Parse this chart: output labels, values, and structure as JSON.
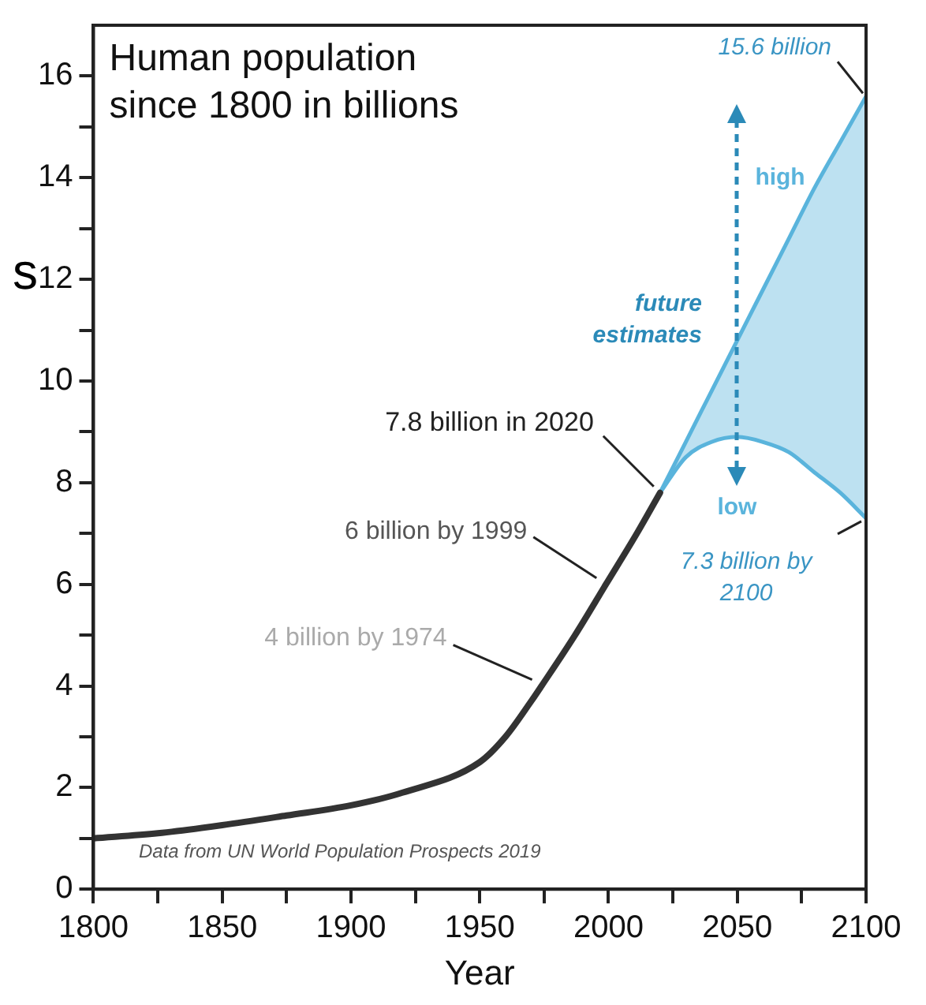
{
  "chart_data": {
    "type": "line",
    "title": "Human population since 1800 in billions",
    "xlabel": "Year",
    "xlim": [
      1800,
      2100
    ],
    "xticks": [
      1800,
      {
        "value": 1825,
        "label": null
      },
      1850,
      {
        "value": 1875,
        "label": null
      },
      1900,
      {
        "value": 1925,
        "label": null
      },
      1950,
      {
        "value": 1975,
        "label": null
      },
      2000,
      {
        "value": 2025,
        "label": null
      },
      2050,
      {
        "value": 2075,
        "label": null
      },
      2100
    ],
    "ylim": [
      0,
      17
    ],
    "yticks": [
      0,
      {
        "value": 1,
        "label": null
      },
      2,
      {
        "value": 3,
        "label": null
      },
      4,
      {
        "value": 5,
        "label": null
      },
      6,
      {
        "value": 7,
        "label": null
      },
      8,
      {
        "value": 9,
        "label": null
      },
      10,
      {
        "value": 11,
        "label": null
      },
      12,
      {
        "value": 13,
        "label": null
      },
      14,
      {
        "value": 15,
        "label": null
      },
      16
    ],
    "grid": false,
    "legend": false,
    "marker": "none",
    "line_style": "solid",
    "series": [
      {
        "color": "#333333",
        "x": [
          1800,
          1825,
          1850,
          1875,
          1900,
          1920,
          1950,
          1960,
          1970,
          1974,
          1987,
          1999,
          2011,
          2020
        ],
        "values": [
          1.0,
          1.1,
          1.26,
          1.45,
          1.65,
          1.9,
          2.5,
          3.0,
          3.7,
          4.0,
          5.0,
          6.0,
          7.0,
          7.8
        ]
      },
      {
        "name": "high",
        "color": "#5ab4dc",
        "x": [
          2020,
          2030,
          2040,
          2050,
          2060,
          2070,
          2080,
          2090,
          2100
        ],
        "values": [
          7.8,
          8.8,
          9.8,
          10.8,
          11.8,
          12.8,
          13.8,
          14.7,
          15.6
        ],
        "lower": [
          7.8,
          8.5,
          8.8,
          8.9,
          8.8,
          8.6,
          8.2,
          7.8,
          7.3
        ],
        "upper": [
          7.8,
          8.8,
          9.8,
          10.8,
          11.8,
          12.8,
          13.8,
          14.7,
          15.6
        ]
      },
      {
        "name": "low",
        "color": "#5ab4dc",
        "x": [
          2020,
          2030,
          2040,
          2050,
          2060,
          2070,
          2080,
          2090,
          2100
        ],
        "values": [
          7.8,
          8.5,
          8.8,
          8.9,
          8.8,
          8.6,
          8.2,
          7.8,
          7.3
        ]
      }
    ],
    "annotations": [
      {
        "text": "7.8 billion in 2020",
        "x": 2020,
        "y": 7.8
      },
      {
        "text": "6 billion by 1999",
        "x": 1999,
        "y": 6
      },
      {
        "text": "4 billion by 1974",
        "x": 1974,
        "y": 4
      },
      {
        "text": "15.6 billion",
        "x": 2100,
        "y": 15.6
      },
      {
        "text": "7.3 billion by 2100",
        "x": 2100,
        "y": 7.3
      },
      "future estimates",
      "Data from UN World Population Prospects 2019",
      "s"
    ]
  }
}
